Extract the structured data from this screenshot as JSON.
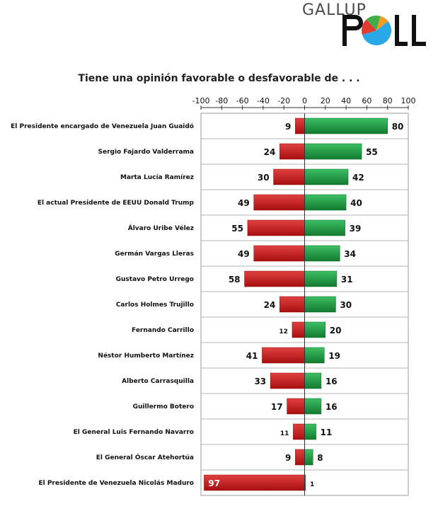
{
  "logo": {
    "word": "GALLUP",
    "brand": "POLL",
    "pie_colors": [
      "#2aa7e6",
      "#e33b2f",
      "#3fae49",
      "#f59a23"
    ]
  },
  "chart_data": {
    "type": "bar",
    "title": "Tiene una opinión favorable o desfavorable de . . .",
    "xlim": [
      -100,
      100
    ],
    "xticks": [
      "-100",
      "-80",
      "-60",
      "-40",
      "-20",
      "0",
      "20",
      "40",
      "60",
      "80",
      "100"
    ],
    "grid": true,
    "categories": [
      "El Presidente encargado de Venezuela Juan Guaidó",
      "Sergio Fajardo Valderrama",
      "Marta Lucía Ramírez",
      "El actual Presidente de EEUU Donald Trump",
      "Álvaro Uribe Vélez",
      "Germán Vargas Lleras",
      "Gustavo Petro Urrego",
      "Carlos Holmes Trujillo",
      "Fernando Carrillo",
      "Néstor Humberto Martínez",
      "Alberto Carrasquilla",
      "Guillermo Botero",
      "El General Luis Fernando Navarro",
      "El General Óscar Atehortúa",
      "El Presidente de Venezuela Nicolás Maduro"
    ],
    "series": [
      {
        "key": "unfavorable",
        "color": "#c41a1a",
        "values": [
          9,
          24,
          30,
          49,
          55,
          49,
          58,
          24,
          12,
          41,
          33,
          17,
          11,
          9,
          97
        ]
      },
      {
        "key": "favorable",
        "color": "#1f9a3e",
        "values": [
          80,
          55,
          42,
          40,
          39,
          34,
          31,
          30,
          20,
          19,
          16,
          16,
          11,
          8,
          1
        ]
      }
    ]
  }
}
